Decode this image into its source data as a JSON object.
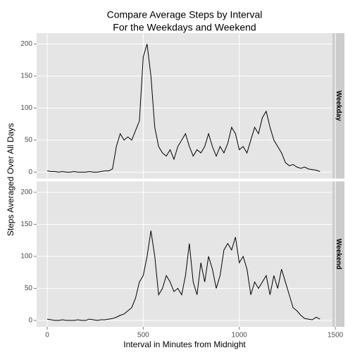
{
  "chart_data": {
    "type": "line",
    "facet": "rows",
    "title": "Compare Average Steps by Interval",
    "subtitle": "For the Weekdays and Weekend",
    "xlabel": "Interval in Minutes from Midnight",
    "ylabel": "Steps Averaged Over All Days",
    "x": [
      0,
      20,
      40,
      60,
      80,
      100,
      120,
      140,
      160,
      180,
      200,
      220,
      240,
      260,
      280,
      300,
      320,
      340,
      360,
      380,
      400,
      420,
      440,
      460,
      480,
      500,
      520,
      540,
      560,
      580,
      600,
      620,
      640,
      660,
      680,
      700,
      720,
      740,
      760,
      780,
      800,
      820,
      840,
      860,
      880,
      900,
      920,
      940,
      960,
      980,
      1000,
      1020,
      1040,
      1060,
      1080,
      1100,
      1120,
      1140,
      1160,
      1180,
      1200,
      1220,
      1240,
      1260,
      1280,
      1300,
      1320,
      1340,
      1360,
      1380,
      1400,
      1420
    ],
    "series": [
      {
        "name": "Weekday",
        "color": "#000000",
        "values": [
          2,
          1,
          1,
          0,
          1,
          0,
          0,
          1,
          0,
          0,
          0,
          1,
          0,
          0,
          1,
          2,
          2,
          5,
          40,
          60,
          50,
          55,
          50,
          65,
          80,
          180,
          200,
          150,
          70,
          40,
          30,
          25,
          35,
          20,
          40,
          50,
          60,
          40,
          25,
          35,
          30,
          40,
          60,
          40,
          25,
          40,
          30,
          45,
          70,
          60,
          35,
          40,
          30,
          50,
          70,
          60,
          85,
          95,
          70,
          50,
          40,
          30,
          15,
          10,
          12,
          8,
          6,
          8,
          5,
          4,
          3,
          1
        ]
      },
      {
        "name": "Weekend",
        "color": "#000000",
        "values": [
          2,
          1,
          0,
          0,
          1,
          0,
          0,
          0,
          1,
          0,
          0,
          2,
          1,
          0,
          1,
          1,
          2,
          3,
          5,
          8,
          10,
          15,
          20,
          35,
          60,
          70,
          100,
          140,
          100,
          40,
          50,
          70,
          60,
          45,
          50,
          40,
          70,
          120,
          60,
          40,
          90,
          60,
          100,
          80,
          50,
          70,
          110,
          120,
          110,
          130,
          90,
          100,
          80,
          40,
          60,
          50,
          60,
          70,
          40,
          70,
          50,
          80,
          60,
          40,
          20,
          15,
          8,
          3,
          2,
          1,
          5,
          2
        ]
      }
    ],
    "xlim": [
      -55,
      1485
    ],
    "xticks": [
      0,
      500,
      1000,
      1500
    ],
    "ylim": [
      -10,
      217
    ],
    "yticks": [
      0,
      50,
      100,
      150,
      200
    ],
    "grid": true
  }
}
